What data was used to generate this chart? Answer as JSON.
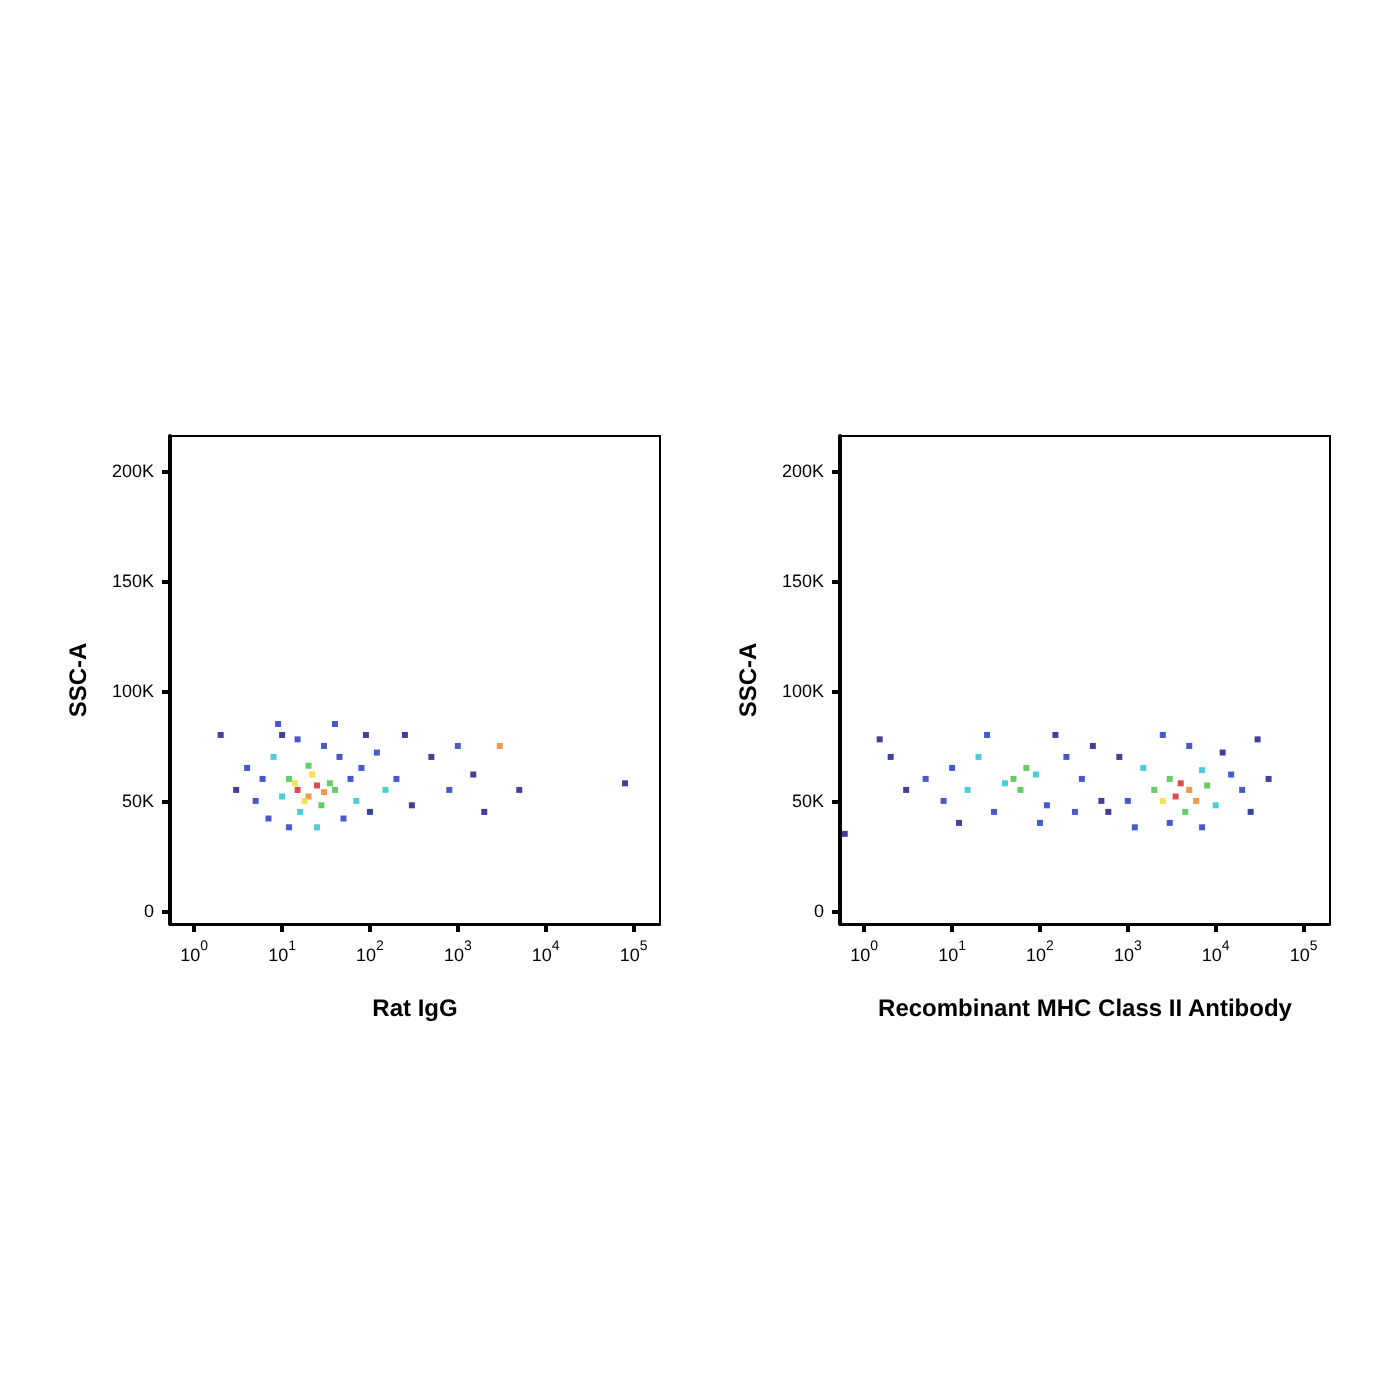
{
  "chart_data": [
    {
      "type": "scatter",
      "xlabel": "Rat IgG",
      "ylabel": "SSC-A",
      "log": "x",
      "grid": false,
      "marker": "square",
      "xlim": [
        0.53,
        200000
      ],
      "ylim": [
        -6000,
        216000
      ],
      "xticks": [
        {
          "value": 1,
          "label": "10$^{0}$"
        },
        {
          "value": 10,
          "label": "10$^{1}$"
        },
        {
          "value": 100,
          "label": "10$^{2}$"
        },
        {
          "value": 1000,
          "label": "10$^{3}$"
        },
        {
          "value": 10000,
          "label": "10$^{4}$"
        },
        {
          "value": 100000,
          "label": "10$^{5}$"
        }
      ],
      "yticks": [
        0,
        {
          "value": 50000,
          "label": "50K"
        },
        {
          "value": 100000,
          "label": "100K"
        },
        {
          "value": 150000,
          "label": "150K"
        },
        {
          "value": 200000,
          "label": "200K"
        }
      ],
      "x": [
        8,
        6,
        5,
        7,
        12,
        25,
        50,
        60,
        45,
        30,
        15,
        10,
        70,
        80,
        100,
        120,
        150,
        4,
        3,
        200,
        300,
        500,
        800,
        1500,
        3000,
        5000,
        80000,
        2,
        9,
        40,
        90,
        250,
        1000,
        2000,
        12,
        22,
        35,
        10,
        28,
        16,
        40,
        20,
        14,
        15,
        20,
        25,
        18,
        30
      ],
      "values": [
        70000,
        60000,
        50000,
        42000,
        38000,
        38000,
        42000,
        60000,
        70000,
        75000,
        78000,
        80000,
        50000,
        65000,
        45000,
        72000,
        55000,
        65000,
        55000,
        60000,
        48000,
        70000,
        55000,
        62000,
        75000,
        55000,
        58000,
        80000,
        85000,
        85000,
        80000,
        80000,
        75000,
        45000,
        60000,
        62000,
        58000,
        52000,
        48000,
        45000,
        55000,
        66000,
        58000,
        55000,
        52000,
        57000,
        50000,
        54000
      ],
      "colors": [
        "#20c0d0",
        "#1830c0",
        "#1830c0",
        "#1830c0",
        "#1830c0",
        "#20c0d0",
        "#1830c0",
        "#1830c0",
        "#1830c0",
        "#1830c0",
        "#1830c0",
        "#101080",
        "#20c0d0",
        "#1830c0",
        "#101080",
        "#1830c0",
        "#20c0d0",
        "#1830c0",
        "#101080",
        "#1830c0",
        "#101080",
        "#101080",
        "#1830c0",
        "#101080",
        "#f08020",
        "#101080",
        "#101080",
        "#101080",
        "#1830c0",
        "#1830c0",
        "#101080",
        "#101080",
        "#1830c0",
        "#101080",
        "#40c040",
        "#e8e020",
        "#40c040",
        "#20c0d0",
        "#40c040",
        "#20c0d0",
        "#40c040",
        "#40c040",
        "#e8e020",
        "#d62020",
        "#f08020",
        "#d62020",
        "#e8e020",
        "#f08020"
      ]
    },
    {
      "type": "scatter",
      "xlabel": "Recombinant MHC Class II Antibody",
      "ylabel": "SSC-A",
      "log": "x",
      "grid": false,
      "marker": "square",
      "xlim": [
        0.53,
        200000
      ],
      "ylim": [
        -6000,
        216000
      ],
      "xticks": [
        {
          "value": 1,
          "label": "10$^{0}$"
        },
        {
          "value": 10,
          "label": "10$^{1}$"
        },
        {
          "value": 100,
          "label": "10$^{2}$"
        },
        {
          "value": 1000,
          "label": "10$^{3}$"
        },
        {
          "value": 10000,
          "label": "10$^{4}$"
        },
        {
          "value": 100000,
          "label": "10$^{5}$"
        }
      ],
      "yticks": [
        0,
        {
          "value": 50000,
          "label": "50K"
        },
        {
          "value": 100000,
          "label": "100K"
        },
        {
          "value": 150000,
          "label": "150K"
        },
        {
          "value": 200000,
          "label": "200K"
        }
      ],
      "x": [
        20,
        15,
        10,
        8,
        30,
        120,
        200,
        300,
        150,
        25,
        5,
        3,
        2,
        400,
        500,
        100,
        250,
        12,
        1.5,
        0.6,
        50,
        70,
        40,
        90,
        60,
        1500,
        1000,
        10000,
        15000,
        20000,
        12000,
        5000,
        2500,
        3000,
        7000,
        25000,
        40000,
        800,
        600,
        30000,
        1200,
        3000,
        8000,
        2500,
        4500,
        7000,
        2000,
        3500,
        5000,
        4000,
        6000
      ],
      "values": [
        70000,
        55000,
        65000,
        50000,
        45000,
        48000,
        70000,
        60000,
        80000,
        80000,
        60000,
        55000,
        70000,
        75000,
        50000,
        40000,
        45000,
        40000,
        78000,
        35000,
        60000,
        65000,
        58000,
        62000,
        55000,
        65000,
        50000,
        48000,
        62000,
        55000,
        72000,
        75000,
        80000,
        40000,
        38000,
        45000,
        60000,
        70000,
        45000,
        78000,
        38000,
        60000,
        57000,
        50000,
        45000,
        64000,
        55000,
        52000,
        55000,
        58000,
        50000
      ],
      "colors": [
        "#20c0d0",
        "#20c0d0",
        "#1830c0",
        "#1830c0",
        "#1830c0",
        "#1830c0",
        "#1830c0",
        "#1830c0",
        "#101080",
        "#1830c0",
        "#1830c0",
        "#101080",
        "#101080",
        "#101080",
        "#101080",
        "#1830c0",
        "#1830c0",
        "#101080",
        "#101080",
        "#101080",
        "#40c040",
        "#40c040",
        "#20c0d0",
        "#20c0d0",
        "#40c040",
        "#20c0d0",
        "#1830c0",
        "#20c0d0",
        "#1830c0",
        "#1830c0",
        "#101080",
        "#1830c0",
        "#1830c0",
        "#1830c0",
        "#1830c0",
        "#101080",
        "#101080",
        "#101080",
        "#101080",
        "#101080",
        "#1830c0",
        "#40c040",
        "#40c040",
        "#e8e020",
        "#40c040",
        "#20c0d0",
        "#40c040",
        "#d62020",
        "#f08020",
        "#d62020",
        "#f08020"
      ]
    }
  ]
}
